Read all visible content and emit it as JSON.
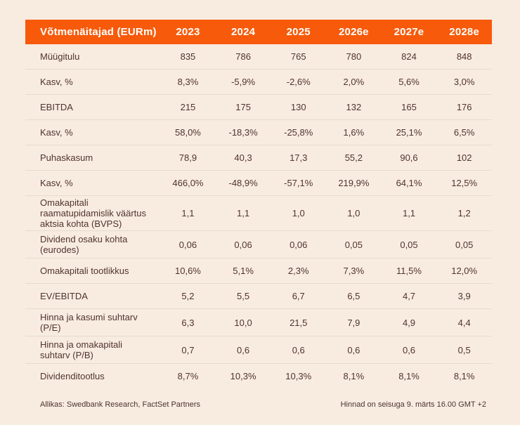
{
  "table": {
    "header": {
      "label": "Võtmenäitajad (EURm)",
      "years": [
        "2023",
        "2024",
        "2025",
        "2026e",
        "2027e",
        "2028e"
      ]
    },
    "rows": [
      {
        "label": "Müügitulu",
        "values": [
          "835",
          "786",
          "765",
          "780",
          "824",
          "848"
        ]
      },
      {
        "label": "Kasv, %",
        "values": [
          "8,3%",
          "-5,9%",
          "-2,6%",
          "2,0%",
          "5,6%",
          "3,0%"
        ]
      },
      {
        "label": "EBITDA",
        "values": [
          "215",
          "175",
          "130",
          "132",
          "165",
          "176"
        ]
      },
      {
        "label": "Kasv, %",
        "values": [
          "58,0%",
          "-18,3%",
          "-25,8%",
          "1,6%",
          "25,1%",
          "6,5%"
        ]
      },
      {
        "label": "Puhaskasum",
        "values": [
          "78,9",
          "40,3",
          "17,3",
          "55,2",
          "90,6",
          "102"
        ]
      },
      {
        "label": "Kasv, %",
        "values": [
          "466,0%",
          "-48,9%",
          "-57,1%",
          "219,9%",
          "64,1%",
          "12,5%"
        ]
      },
      {
        "label": "Omakapitali raamatupidamislik väärtus aktsia kohta (BVPS)",
        "values": [
          "1,1",
          "1,1",
          "1,0",
          "1,0",
          "1,1",
          "1,2"
        ]
      },
      {
        "label": "Dividend osaku kohta (eurodes)",
        "values": [
          "0,06",
          "0,06",
          "0,06",
          "0,05",
          "0,05",
          "0,05"
        ]
      },
      {
        "label": "Omakapitali tootlikkus",
        "values": [
          "10,6%",
          "5,1%",
          "2,3%",
          "7,3%",
          "11,5%",
          "12,0%"
        ]
      },
      {
        "label": "EV/EBITDA",
        "values": [
          "5,2",
          "5,5",
          "6,7",
          "6,5",
          "4,7",
          "3,9"
        ]
      },
      {
        "label": "Hinna ja kasumi suhtarv (P/E)",
        "values": [
          "6,3",
          "10,0",
          "21,5",
          "7,9",
          "4,9",
          "4,4"
        ]
      },
      {
        "label": "Hinna ja omakapitali suhtarv (P/B)",
        "values": [
          "0,7",
          "0,6",
          "0,6",
          "0,6",
          "0,6",
          "0,5"
        ]
      },
      {
        "label": "Dividenditootlus",
        "values": [
          "8,7%",
          "10,3%",
          "10,3%",
          "8,1%",
          "8,1%",
          "8,1%"
        ]
      }
    ]
  },
  "footer": {
    "source": "Allikas: Swedbank Research, FactSet Partners",
    "price_note": "Hinnad on seisuga 9. märts 16.00 GMT +2"
  },
  "colors": {
    "accent_orange": "#f75a0a",
    "background": "#f8ece1",
    "text": "#51332d",
    "divider": "#e7dbce",
    "header_text": "#ffffff"
  },
  "chart_data": {
    "type": "table",
    "title": "Võtmenäitajad (EURm)",
    "columns": [
      "Võtmenäitajad (EURm)",
      "2023",
      "2024",
      "2025",
      "2026e",
      "2027e",
      "2028e"
    ],
    "rows": [
      [
        "Müügitulu",
        "835",
        "786",
        "765",
        "780",
        "824",
        "848"
      ],
      [
        "Kasv, %",
        "8,3%",
        "-5,9%",
        "-2,6%",
        "2,0%",
        "5,6%",
        "3,0%"
      ],
      [
        "EBITDA",
        "215",
        "175",
        "130",
        "132",
        "165",
        "176"
      ],
      [
        "Kasv, %",
        "58,0%",
        "-18,3%",
        "-25,8%",
        "1,6%",
        "25,1%",
        "6,5%"
      ],
      [
        "Puhaskasum",
        "78,9",
        "40,3",
        "17,3",
        "55,2",
        "90,6",
        "102"
      ],
      [
        "Kasv, %",
        "466,0%",
        "-48,9%",
        "-57,1%",
        "219,9%",
        "64,1%",
        "12,5%"
      ],
      [
        "Omakapitali raamatupidamislik väärtus aktsia kohta (BVPS)",
        "1,1",
        "1,1",
        "1,0",
        "1,0",
        "1,1",
        "1,2"
      ],
      [
        "Dividend osaku kohta (eurodes)",
        "0,06",
        "0,06",
        "0,06",
        "0,05",
        "0,05",
        "0,05"
      ],
      [
        "Omakapitali tootlikkus",
        "10,6%",
        "5,1%",
        "2,3%",
        "7,3%",
        "11,5%",
        "12,0%"
      ],
      [
        "EV/EBITDA",
        "5,2",
        "5,5",
        "6,7",
        "6,5",
        "4,7",
        "3,9"
      ],
      [
        "Hinna ja kasumi suhtarv (P/E)",
        "6,3",
        "10,0",
        "21,5",
        "7,9",
        "4,9",
        "4,4"
      ],
      [
        "Hinna ja omakapitali suhtarv (P/B)",
        "0,7",
        "0,6",
        "0,6",
        "0,6",
        "0,6",
        "0,5"
      ],
      [
        "Dividenditootlus",
        "8,7%",
        "10,3%",
        "10,3%",
        "8,1%",
        "8,1%",
        "8,1%"
      ]
    ]
  }
}
